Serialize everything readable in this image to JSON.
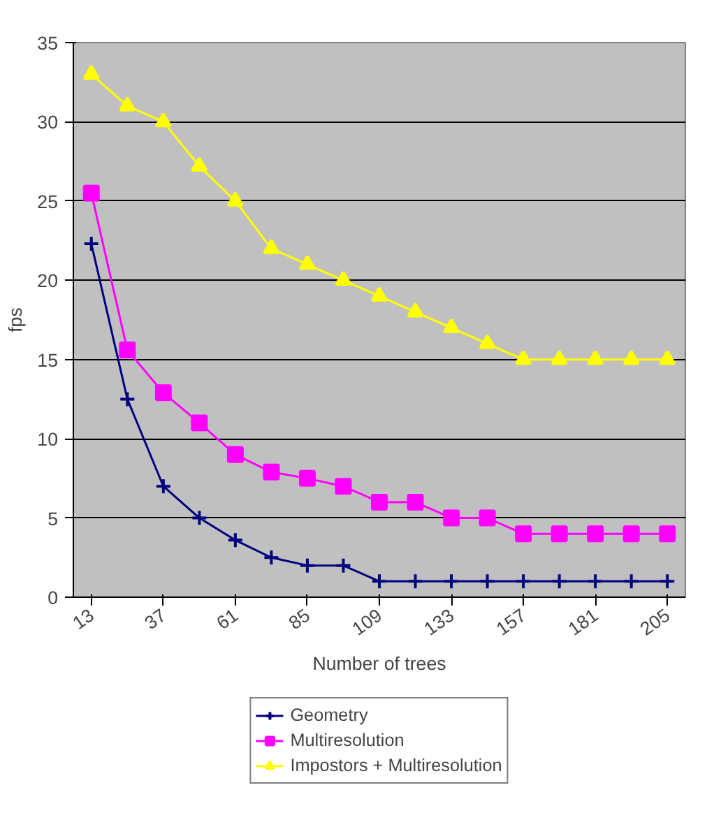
{
  "chart_data": {
    "type": "line",
    "xlabel": "Number of trees",
    "ylabel": "fps",
    "categories": [
      "13",
      null,
      "37",
      null,
      "61",
      null,
      "85",
      null,
      "109",
      null,
      "133",
      null,
      "157",
      null,
      "181",
      null,
      "205"
    ],
    "ylim": [
      0,
      35
    ],
    "yticks": [
      0,
      5,
      10,
      15,
      20,
      25,
      30,
      35
    ],
    "grid": "y",
    "legend": "bottom",
    "series": [
      {
        "name": "Geometry",
        "color": "#000080",
        "marker": "cross",
        "values": [
          22.3,
          12.5,
          7,
          5,
          3.6,
          2.5,
          2,
          2,
          1,
          1,
          1,
          1,
          1,
          1,
          1,
          1,
          1
        ]
      },
      {
        "name": "Multiresolution",
        "color": "#ff00ff",
        "marker": "square",
        "values": [
          25.5,
          15.6,
          12.9,
          11,
          9,
          7.9,
          7.5,
          7,
          6,
          6,
          5,
          5,
          4,
          4,
          4,
          4,
          4
        ]
      },
      {
        "name": "Impostors + Multiresolution",
        "color": "#ffff00",
        "marker": "triangle",
        "values": [
          33,
          31,
          30,
          27.2,
          25,
          22,
          21,
          20,
          19,
          18,
          17,
          16,
          15,
          15,
          15,
          15,
          15
        ]
      }
    ]
  }
}
